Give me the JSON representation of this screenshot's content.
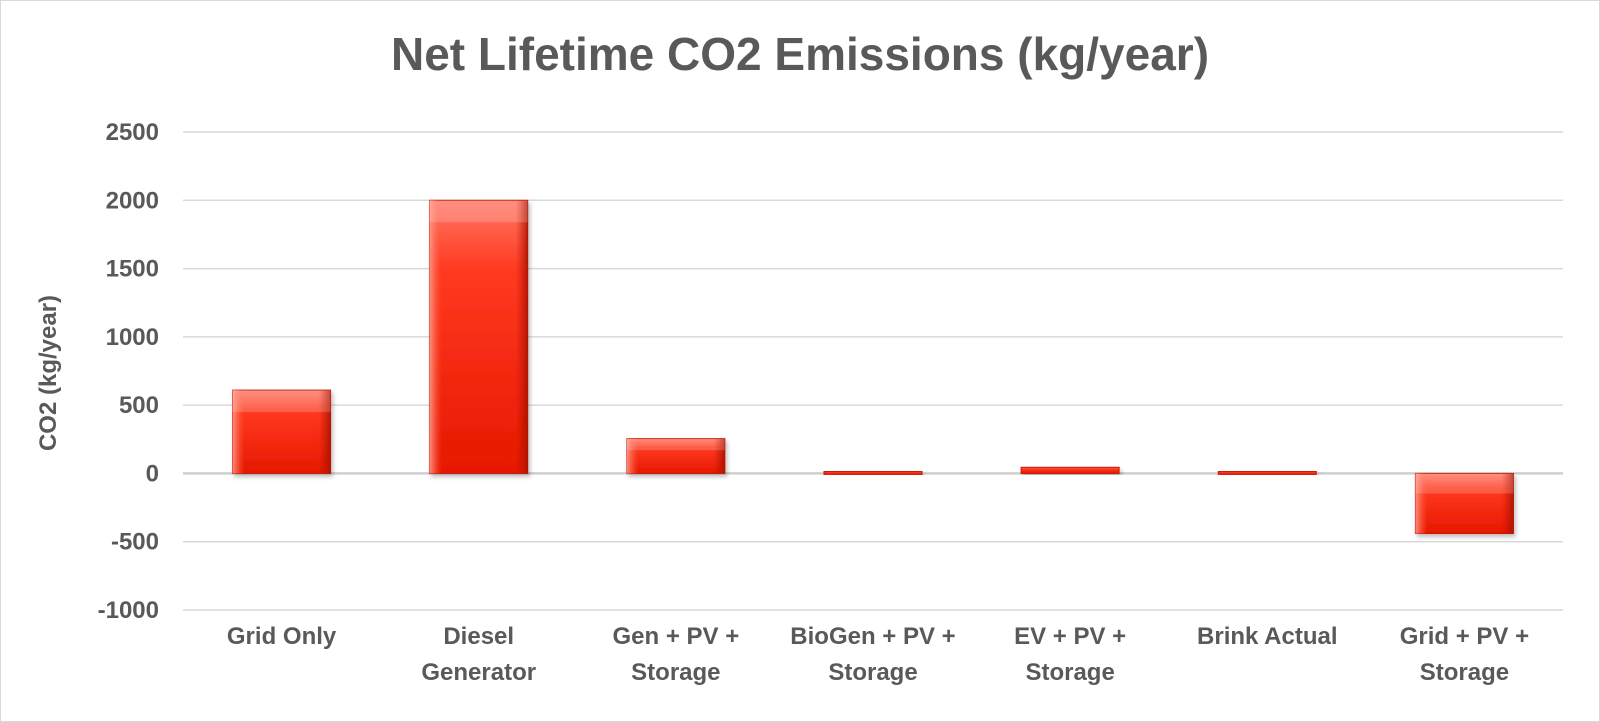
{
  "chart_data": {
    "type": "bar",
    "title": "Net Lifetime CO2 Emissions (kg/year)",
    "xlabel": "",
    "ylabel": "CO2 (kg/year)",
    "ylim": [
      -1000,
      2500
    ],
    "yticks": [
      "2500",
      "2000",
      "1500",
      "1000",
      "500",
      "0",
      "-500",
      "-1000"
    ],
    "grid": true,
    "categories": [
      [
        "Grid Only"
      ],
      [
        "Diesel",
        "Generator"
      ],
      [
        "Gen + PV +",
        "Storage"
      ],
      [
        "BioGen + PV +",
        "Storage"
      ],
      [
        "EV + PV +",
        "Storage"
      ],
      [
        "Brink Actual"
      ],
      [
        "Grid + PV +",
        "Storage"
      ]
    ],
    "values": [
      610,
      2000,
      255,
      15,
      45,
      15,
      -440
    ],
    "bar_color": "#ff2a10"
  }
}
